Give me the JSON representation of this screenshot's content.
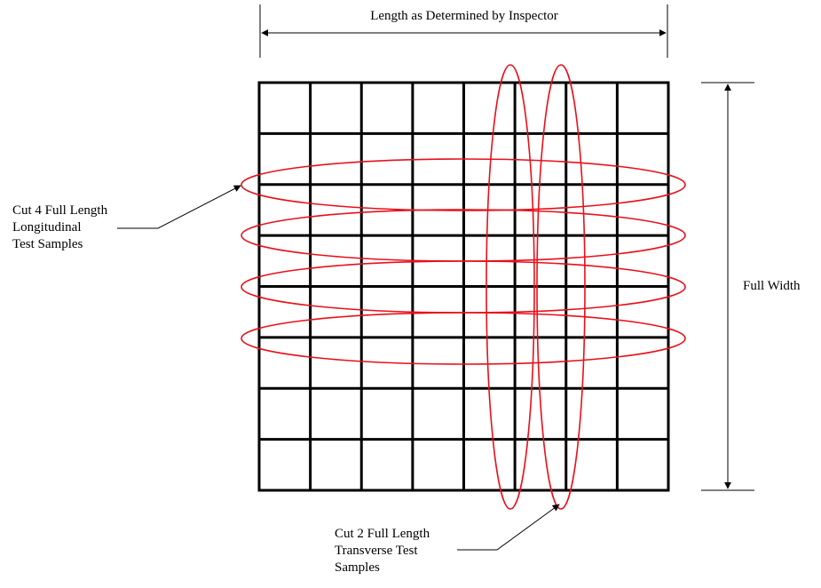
{
  "labels": {
    "length": "Length  as Determined by Inspector",
    "width": "Full Width",
    "longitudinal": {
      "line1": "Cut 4 Full Length",
      "line2": "Longitudinal",
      "line3": "Test Samples"
    },
    "transverse": {
      "line1": "Cut 2 Full Length",
      "line2": "Transverse Test",
      "line3": "Samples"
    }
  },
  "grid": {
    "columns": 8,
    "rows": 8,
    "line_color": "#000000"
  },
  "samples": {
    "longitudinal_count": 4,
    "transverse_count": 2,
    "color": "#e8101a"
  }
}
